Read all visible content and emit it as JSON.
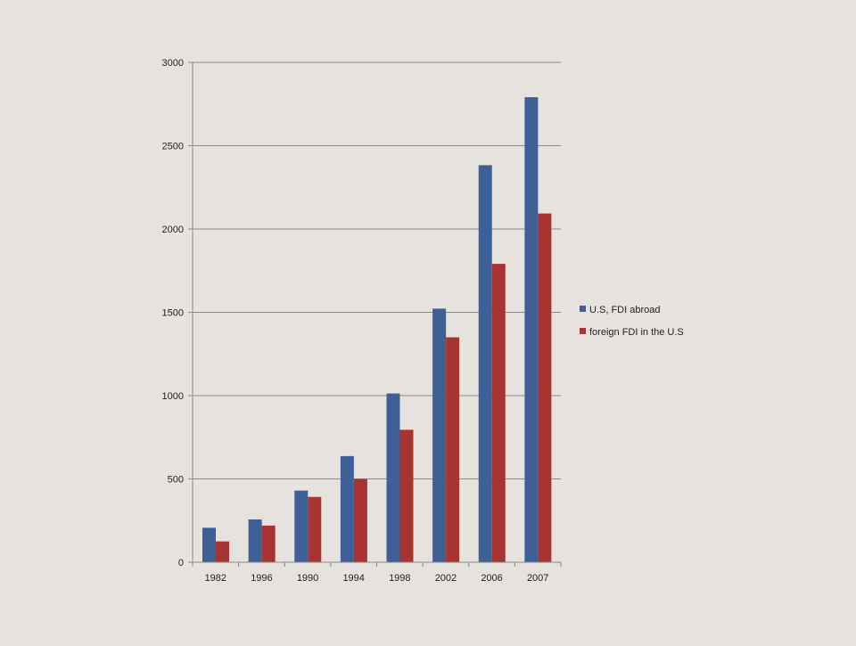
{
  "chart_data": {
    "type": "bar",
    "title": "",
    "xlabel": "",
    "ylabel": "",
    "categories": [
      "1982",
      "1996",
      "1990",
      "1994",
      "1998",
      "2002",
      "2006",
      "2007"
    ],
    "ylim": [
      0,
      3000
    ],
    "yticks": [
      "0",
      "500",
      "1000",
      "1500",
      "2000",
      "2500",
      "3000"
    ],
    "grid": true,
    "legend_position": "right",
    "series": [
      {
        "name": "U.S, FDI abroad",
        "color": "#3f5f97",
        "values": [
          207,
          257,
          430,
          637,
          1013,
          1522,
          2383,
          2791
        ]
      },
      {
        "name": "foreign FDI in the U.S",
        "color": "#a83431",
        "values": [
          125,
          220,
          392,
          500,
          795,
          1350,
          1791,
          2093
        ]
      }
    ]
  }
}
